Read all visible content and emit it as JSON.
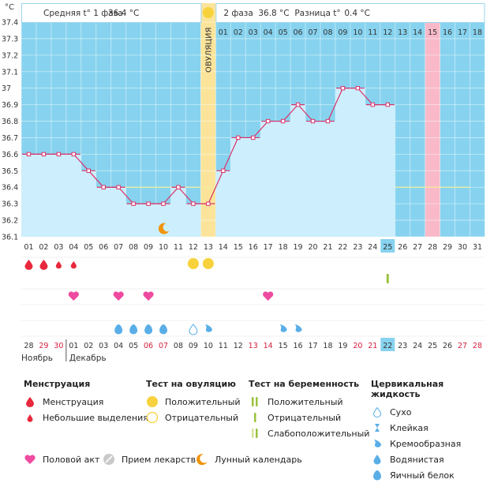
{
  "chart_data": {
    "type": "line",
    "title": "BBT chart",
    "ylabel": "°C",
    "ylim": [
      36.1,
      37.4
    ],
    "yticks": [
      "37.4",
      "37.3",
      "37.2",
      "37.1",
      "37",
      "36.9",
      "36.8",
      "36.7",
      "36.6",
      "36.5",
      "36.4",
      "36.3",
      "36.2",
      "36.1"
    ],
    "x_days": [
      "01",
      "02",
      "03",
      "04",
      "05",
      "06",
      "07",
      "08",
      "09",
      "10",
      "11",
      "12",
      "13",
      "14",
      "15",
      "16",
      "17",
      "18",
      "19",
      "20",
      "21",
      "22",
      "23",
      "24",
      "25",
      "26",
      "27",
      "28",
      "29",
      "30",
      "31"
    ],
    "temps": [
      36.6,
      36.6,
      36.6,
      36.6,
      36.5,
      36.4,
      36.4,
      36.3,
      36.3,
      36.3,
      36.4,
      36.3,
      36.3,
      36.5,
      36.7,
      36.7,
      36.8,
      36.8,
      36.9,
      36.8,
      36.8,
      37.0,
      37.0,
      36.9,
      36.9,
      null,
      null,
      null,
      null,
      null,
      null
    ],
    "coverline": 36.4,
    "ovulation_day": 13,
    "ovulation_label": "ОВУЛЯЦИЯ",
    "highlight_day": 25,
    "phase2_days": [
      "01",
      "02",
      "03",
      "04",
      "05",
      "06",
      "07",
      "08",
      "09",
      "10",
      "11",
      "12",
      "13",
      "14",
      "15",
      "16",
      "17",
      "18"
    ],
    "phase2_highlight": 15,
    "calendar_dates": [
      "28",
      "29",
      "30",
      "01",
      "02",
      "03",
      "04",
      "05",
      "06",
      "07",
      "08",
      "09",
      "10",
      "11",
      "12",
      "13",
      "14",
      "15",
      "16",
      "17",
      "18",
      "19",
      "20",
      "21",
      "22",
      "23",
      "24",
      "25",
      "26",
      "27",
      "28"
    ],
    "calendar_red": [
      1,
      2,
      8,
      9,
      15,
      16,
      22,
      23,
      29,
      30
    ],
    "today_index": 24,
    "month_prev": "Ноябрь",
    "month_next": "Декабрь"
  },
  "header": {
    "phase1_label": "Средняя t° 1 фаза",
    "phase1_value": "36.4 °C",
    "phase2_label": "2 фаза",
    "phase2_value": "36.8 °C",
    "diff_label": "Разница t°",
    "diff_value": "0.4 °C"
  },
  "markers": {
    "menstruation": [
      {
        "day": 1,
        "size": "big"
      },
      {
        "day": 2,
        "size": "big"
      },
      {
        "day": 3,
        "size": "small"
      },
      {
        "day": 4,
        "size": "small"
      }
    ],
    "ovulation_tests": [
      12,
      13
    ],
    "pregnancy_tests": [
      25
    ],
    "intercourse": [
      4,
      7,
      9,
      17
    ],
    "cervical_eggwhite": [
      7,
      8,
      9,
      10
    ],
    "cervical_dry": [
      12
    ],
    "cervical_creamy": [
      13,
      18,
      19
    ],
    "moon_day": 10
  },
  "legend": {
    "menstruation": {
      "title": "Менструация",
      "items": [
        "Менструация",
        "Небольшие выделения"
      ]
    },
    "ovulation_test": {
      "title": "Тест на овуляцию",
      "items": [
        "Положительный",
        "Отрицательный"
      ]
    },
    "pregnancy_test": {
      "title": "Тест на беременность",
      "items": [
        "Положительный",
        "Отрицательный",
        "Слабоположительный"
      ]
    },
    "cervical": {
      "title": "Цервикальная жидкость",
      "items": [
        "Сухо",
        "Клейкая",
        "Кремообразная",
        "Водянистая",
        "Яичный белок"
      ]
    },
    "bottom": [
      "Половой акт",
      "Прием лекарств",
      "Лунный календарь"
    ]
  },
  "colors": {
    "sky": "#87d3ef",
    "area": "#cdeefc",
    "line": "#d9336a",
    "ovu": "#fbe49a",
    "pink": "#f9b9c9",
    "blue": "#5aaee8"
  }
}
